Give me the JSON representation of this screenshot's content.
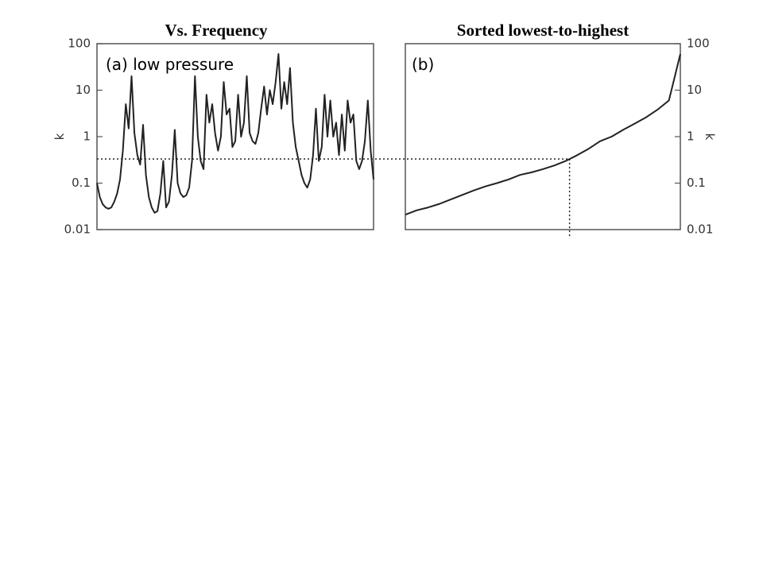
{
  "chart_data": [
    {
      "type": "line",
      "title": "Vs. Frequency",
      "annotation": "(a) low pressure",
      "y_label": "k",
      "log_y": true,
      "ylim": [
        0.01,
        100
      ],
      "yticks": [
        0.01,
        0.1,
        1,
        10,
        100
      ],
      "color": "#222222",
      "reference_line": 0.33,
      "values": [
        0.1,
        0.05,
        0.035,
        0.03,
        0.028,
        0.03,
        0.04,
        0.06,
        0.12,
        0.5,
        5,
        1.5,
        20,
        1.2,
        0.4,
        0.25,
        1.8,
        0.15,
        0.05,
        0.03,
        0.023,
        0.025,
        0.06,
        0.3,
        0.03,
        0.04,
        0.15,
        1.4,
        0.1,
        0.06,
        0.05,
        0.055,
        0.08,
        0.3,
        20,
        1,
        0.3,
        0.2,
        8,
        2,
        5,
        1.2,
        0.5,
        1,
        15,
        3,
        4,
        0.6,
        0.8,
        8,
        1,
        2,
        20,
        1.2,
        0.8,
        0.7,
        1.2,
        4,
        12,
        3,
        10,
        5,
        15,
        60,
        4,
        15,
        5,
        30,
        2,
        0.6,
        0.3,
        0.15,
        0.1,
        0.08,
        0.12,
        0.4,
        4,
        0.3,
        0.6,
        8,
        1,
        6,
        1,
        2,
        0.4,
        3,
        0.5,
        6,
        2,
        3,
        0.3,
        0.2,
        0.3,
        0.8,
        6,
        0.5,
        0.12
      ]
    },
    {
      "type": "line",
      "title": "Sorted lowest-to-highest",
      "annotation": "(b)",
      "y_label": "k",
      "log_y": true,
      "ylim": [
        0.01,
        100
      ],
      "yticks": [
        0.01,
        0.1,
        1,
        10,
        100
      ],
      "color": "#222222",
      "values": [
        0.021,
        0.026,
        0.03,
        0.036,
        0.045,
        0.056,
        0.07,
        0.085,
        0.1,
        0.12,
        0.15,
        0.17,
        0.2,
        0.24,
        0.3,
        0.4,
        0.55,
        0.8,
        1.0,
        1.4,
        1.9,
        2.6,
        3.8,
        6,
        60
      ]
    }
  ]
}
